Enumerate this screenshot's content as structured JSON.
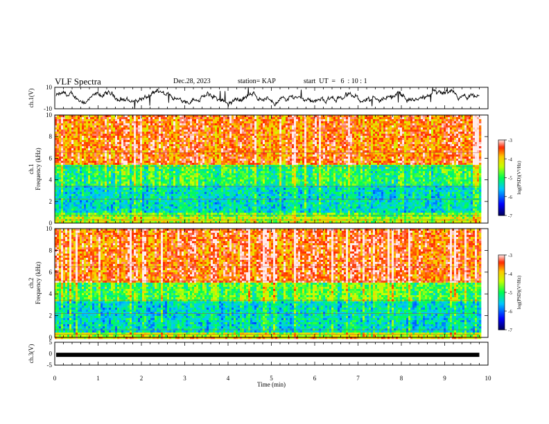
{
  "header": {
    "title": "VLF Spectra",
    "date": "Dec.28, 2023",
    "station": "station= KAP",
    "start": "start  UT  =   6  : 10 : 1"
  },
  "chart_data": [
    {
      "type": "line",
      "name": "ch1-waveform",
      "ylabel": "ch.1(V)",
      "ylim": [
        -10,
        10
      ],
      "yticks": [
        "10",
        "-10"
      ],
      "x_range_min": [
        0,
        9.8
      ]
    },
    {
      "type": "heatmap",
      "name": "ch1-spectrogram",
      "ylabel": "ch.1\nFrequency  (kHz)",
      "ylim": [
        0,
        10
      ],
      "yticks": [
        "0",
        "2",
        "4",
        "6",
        "8",
        "10"
      ],
      "colorbar": {
        "label": "log(PSD)(V²/Hz)",
        "ticks": [
          "-3",
          "-4",
          "-5",
          "-6",
          "-7"
        ],
        "range": [
          -7,
          -3
        ]
      },
      "band_levels_by_khz": [
        {
          "from": 0,
          "to": 0.6,
          "level": -4.4
        },
        {
          "from": 0.6,
          "to": 1.0,
          "level": -4.8
        },
        {
          "from": 1.0,
          "to": 3.4,
          "level": -5.4
        },
        {
          "from": 3.4,
          "to": 5.3,
          "level": -5.0
        },
        {
          "from": 5.3,
          "to": 10,
          "level": -3.6
        }
      ]
    },
    {
      "type": "heatmap",
      "name": "ch2-spectrogram",
      "ylabel": "ch.2\nFrequency  (kHz)",
      "ylim": [
        0,
        10
      ],
      "yticks": [
        "0",
        "2",
        "4",
        "6",
        "8",
        "10"
      ],
      "colorbar": {
        "label": "log(PSD)(V²/Hz)",
        "ticks": [
          "-3",
          "-4",
          "-5",
          "-6",
          "-7"
        ],
        "range": [
          -7,
          -3
        ]
      },
      "band_levels_by_khz": [
        {
          "from": 0,
          "to": 0.5,
          "level": -4.4
        },
        {
          "from": 0.5,
          "to": 3.4,
          "level": -5.4
        },
        {
          "from": 3.4,
          "to": 5.0,
          "level": -4.8
        },
        {
          "from": 5.0,
          "to": 10,
          "level": -3.5
        }
      ]
    },
    {
      "type": "line",
      "name": "ch3-waveform",
      "ylabel": "ch.3(V)",
      "ylim": [
        -5,
        5
      ],
      "yticks": [
        "5",
        "0",
        "-5"
      ],
      "level": -0.5
    }
  ],
  "x_axis": {
    "label": "Time  (min)",
    "ticks": [
      "0",
      "1",
      "2",
      "3",
      "4",
      "5",
      "6",
      "7",
      "8",
      "9",
      "10"
    ],
    "range": [
      0,
      10
    ]
  }
}
